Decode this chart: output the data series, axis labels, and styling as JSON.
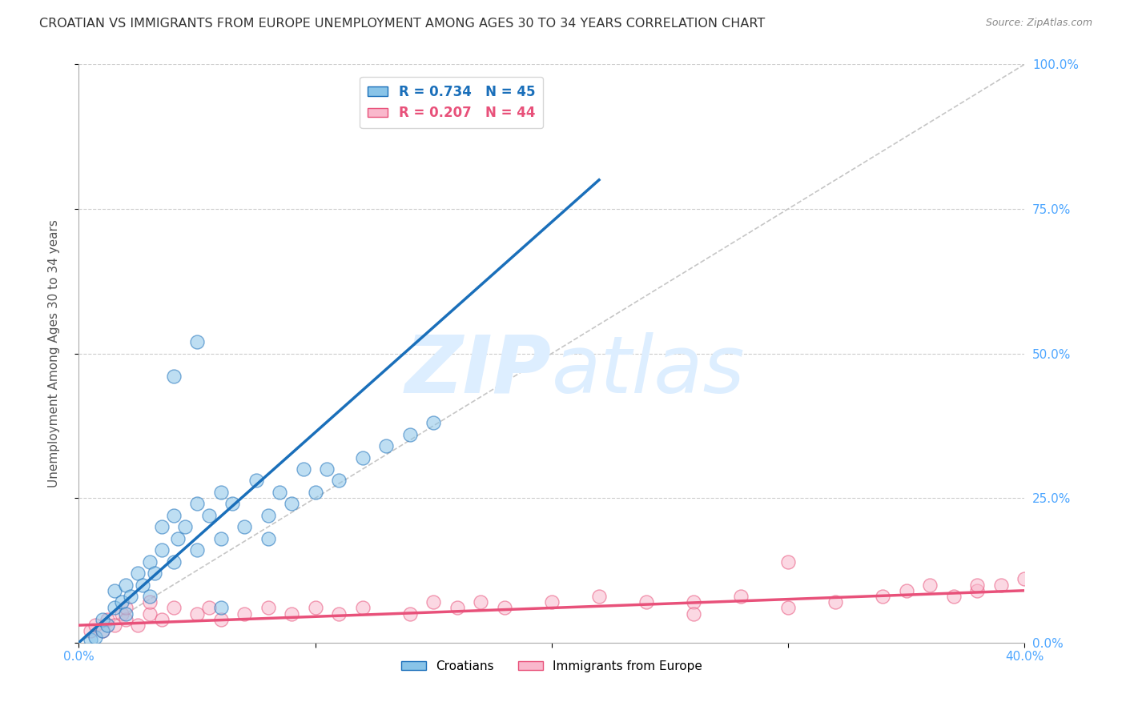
{
  "title": "CROATIAN VS IMMIGRANTS FROM EUROPE UNEMPLOYMENT AMONG AGES 30 TO 34 YEARS CORRELATION CHART",
  "source": "Source: ZipAtlas.com",
  "ylabel": "Unemployment Among Ages 30 to 34 years",
  "xlim": [
    0.0,
    0.4
  ],
  "ylim": [
    0.0,
    1.0
  ],
  "blue_R": 0.734,
  "blue_N": 45,
  "pink_R": 0.207,
  "pink_N": 44,
  "blue_color": "#89c4e8",
  "pink_color": "#f9b8cc",
  "blue_line_color": "#1a6fba",
  "pink_line_color": "#e8517a",
  "diagonal_color": "#c0c0c0",
  "grid_color": "#cccccc",
  "title_color": "#333333",
  "right_axis_label_color": "#4da6ff",
  "bottom_axis_label_color": "#4da6ff",
  "watermark_zip": "ZIP",
  "watermark_atlas": "atlas",
  "watermark_color": "#ddeeff",
  "background_color": "#ffffff",
  "blue_scatter_x": [
    0.005,
    0.007,
    0.01,
    0.01,
    0.012,
    0.015,
    0.015,
    0.018,
    0.02,
    0.02,
    0.022,
    0.025,
    0.027,
    0.03,
    0.03,
    0.032,
    0.035,
    0.035,
    0.04,
    0.04,
    0.042,
    0.045,
    0.05,
    0.05,
    0.055,
    0.06,
    0.06,
    0.065,
    0.07,
    0.075,
    0.08,
    0.085,
    0.09,
    0.095,
    0.1,
    0.105,
    0.11,
    0.12,
    0.13,
    0.14,
    0.15,
    0.05,
    0.04,
    0.08,
    0.06
  ],
  "blue_scatter_y": [
    0.005,
    0.01,
    0.02,
    0.04,
    0.03,
    0.06,
    0.09,
    0.07,
    0.05,
    0.1,
    0.08,
    0.12,
    0.1,
    0.08,
    0.14,
    0.12,
    0.16,
    0.2,
    0.14,
    0.22,
    0.18,
    0.2,
    0.16,
    0.24,
    0.22,
    0.18,
    0.26,
    0.24,
    0.2,
    0.28,
    0.22,
    0.26,
    0.24,
    0.3,
    0.26,
    0.3,
    0.28,
    0.32,
    0.34,
    0.36,
    0.38,
    0.52,
    0.46,
    0.18,
    0.06
  ],
  "pink_scatter_x": [
    0.005,
    0.007,
    0.01,
    0.012,
    0.015,
    0.018,
    0.02,
    0.02,
    0.025,
    0.03,
    0.03,
    0.035,
    0.04,
    0.05,
    0.055,
    0.06,
    0.07,
    0.08,
    0.09,
    0.1,
    0.11,
    0.12,
    0.14,
    0.15,
    0.16,
    0.17,
    0.18,
    0.2,
    0.22,
    0.24,
    0.26,
    0.28,
    0.3,
    0.32,
    0.34,
    0.35,
    0.36,
    0.37,
    0.38,
    0.39,
    0.4,
    0.3,
    0.26,
    0.38
  ],
  "pink_scatter_y": [
    0.02,
    0.03,
    0.02,
    0.04,
    0.03,
    0.05,
    0.04,
    0.06,
    0.03,
    0.05,
    0.07,
    0.04,
    0.06,
    0.05,
    0.06,
    0.04,
    0.05,
    0.06,
    0.05,
    0.06,
    0.05,
    0.06,
    0.05,
    0.07,
    0.06,
    0.07,
    0.06,
    0.07,
    0.08,
    0.07,
    0.07,
    0.08,
    0.06,
    0.07,
    0.08,
    0.09,
    0.1,
    0.08,
    0.09,
    0.1,
    0.11,
    0.14,
    0.05,
    0.1
  ],
  "blue_line_x": [
    0.0,
    0.22
  ],
  "blue_line_y": [
    0.0,
    0.8
  ],
  "pink_line_x": [
    0.0,
    0.4
  ],
  "pink_line_y": [
    0.03,
    0.09
  ]
}
